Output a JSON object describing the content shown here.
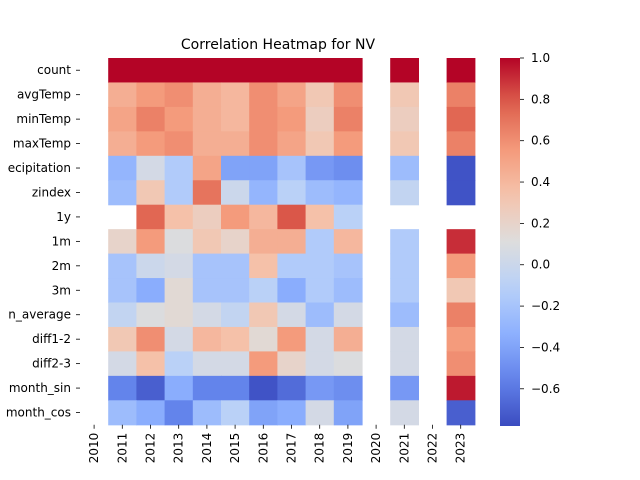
{
  "chart_data": {
    "type": "heatmap",
    "title": "Correlation Heatmap for NV",
    "xlabel": "",
    "ylabel": "",
    "colormap": "coolwarm",
    "vmin": -0.78,
    "vmax": 1.0,
    "colorbar_ticks": [
      "1.0",
      "0.8",
      "0.6",
      "0.4",
      "0.2",
      "0.0",
      "−0.2",
      "−0.4",
      "−0.6"
    ],
    "colorbar_tick_values": [
      1.0,
      0.8,
      0.6,
      0.4,
      0.2,
      0.0,
      -0.2,
      -0.4,
      -0.6
    ],
    "x_labels": [
      "2010",
      "2011",
      "2012",
      "2013",
      "2014",
      "2015",
      "2016",
      "2017",
      "2018",
      "2019",
      "2020",
      "2021",
      "2022",
      "2023"
    ],
    "y_labels": [
      "count",
      "avgTemp",
      "minTemp",
      "maxTemp",
      "precipitation",
      "zindex",
      "1y",
      "1m",
      "2m",
      "3m",
      "roll_average",
      "diff1-2",
      "diff2-3",
      "month_sin",
      "month_cos"
    ],
    "y_labels_display": [
      "count",
      "avgTemp",
      "minTemp",
      "maxTemp",
      "ecipitation",
      "zindex",
      "1y",
      "1m",
      "2m",
      "3m",
      "n_average",
      "diff1-2",
      "diff2-3",
      "month_sin",
      "month_cos"
    ],
    "values": [
      [
        null,
        1.0,
        1.0,
        1.0,
        1.0,
        1.0,
        1.0,
        1.0,
        1.0,
        1.0,
        null,
        1.0,
        null,
        1.0
      ],
      [
        null,
        0.45,
        0.55,
        0.6,
        0.45,
        0.4,
        0.6,
        0.5,
        0.3,
        0.6,
        null,
        0.3,
        null,
        0.65
      ],
      [
        null,
        0.5,
        0.65,
        0.55,
        0.45,
        0.4,
        0.6,
        0.55,
        0.25,
        0.65,
        null,
        0.25,
        null,
        0.75
      ],
      [
        null,
        0.45,
        0.55,
        0.6,
        0.45,
        0.45,
        0.6,
        0.5,
        0.3,
        0.55,
        null,
        0.3,
        null,
        0.65
      ],
      [
        null,
        -0.3,
        0.05,
        -0.15,
        0.5,
        -0.4,
        -0.4,
        -0.2,
        -0.45,
        -0.5,
        null,
        -0.25,
        null,
        -0.75
      ],
      [
        null,
        -0.25,
        0.3,
        -0.15,
        0.7,
        0.0,
        -0.3,
        -0.1,
        -0.25,
        -0.3,
        null,
        -0.05,
        null,
        -0.75
      ],
      [
        null,
        null,
        0.75,
        0.35,
        0.25,
        0.55,
        0.4,
        0.8,
        0.35,
        -0.1,
        null,
        null,
        null,
        null
      ],
      [
        null,
        0.2,
        0.55,
        0.1,
        0.3,
        0.2,
        0.45,
        0.45,
        -0.15,
        0.4,
        null,
        -0.15,
        null,
        0.9
      ],
      [
        null,
        -0.2,
        0.0,
        0.05,
        -0.2,
        -0.2,
        0.35,
        -0.15,
        -0.15,
        -0.2,
        null,
        -0.15,
        null,
        0.55
      ],
      [
        null,
        -0.2,
        -0.35,
        0.15,
        -0.2,
        -0.2,
        -0.1,
        -0.35,
        -0.15,
        -0.25,
        null,
        -0.15,
        null,
        0.3
      ],
      [
        null,
        -0.05,
        0.1,
        0.15,
        0.05,
        -0.05,
        0.3,
        0.05,
        -0.25,
        0.05,
        null,
        -0.25,
        null,
        0.65
      ],
      [
        null,
        0.3,
        0.6,
        0.05,
        0.4,
        0.35,
        0.15,
        0.55,
        0.05,
        0.45,
        null,
        0.05,
        null,
        0.55
      ],
      [
        null,
        0.05,
        0.35,
        -0.1,
        0.05,
        0.05,
        0.55,
        0.2,
        0.05,
        0.1,
        null,
        0.05,
        null,
        0.6
      ],
      [
        null,
        -0.55,
        -0.7,
        -0.35,
        -0.55,
        -0.55,
        -0.75,
        -0.65,
        -0.45,
        -0.5,
        null,
        -0.45,
        null,
        0.95
      ],
      [
        null,
        -0.25,
        -0.35,
        -0.55,
        -0.25,
        -0.1,
        -0.4,
        -0.35,
        0.05,
        -0.4,
        null,
        0.05,
        null,
        -0.7
      ]
    ]
  }
}
